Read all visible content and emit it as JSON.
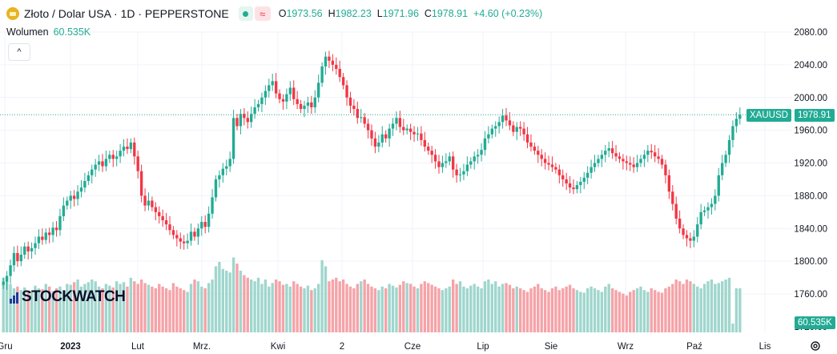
{
  "header": {
    "symbol_title": "Złoto / Dolar USA · 1D · PEPPERSTONE",
    "wave_glyph": "≈",
    "ohlc": {
      "o_label": "O",
      "o_value": "1973.56",
      "h_label": "H",
      "h_value": "1982.23",
      "l_label": "L",
      "l_value": "1971.96",
      "c_label": "C",
      "c_value": "1978.91",
      "change": "+4.60 (+0.23%)"
    }
  },
  "volume_legend": {
    "label": "Wolumen",
    "value": "60.535K"
  },
  "collapse_glyph": "^",
  "price_tag": {
    "symbol": "XAUUSD",
    "price": "1978.91"
  },
  "volume_tag": "60.535K",
  "watermark": "STOCKWATCH",
  "colors": {
    "up": "#22ab94",
    "down": "#f23645",
    "up_vol": "#9fd6cd",
    "down_vol": "#f5a3a8",
    "grid": "#f0f3fa"
  },
  "icons": {
    "settings": "gear-icon",
    "coin": "gold-coin-icon"
  },
  "chart_data": {
    "type": "candlestick",
    "price_axis_ticks": [
      "2080.00",
      "2040.00",
      "2000.00",
      "1960.00",
      "1920.00",
      "1880.00",
      "1840.00",
      "1800.00",
      "1760.00"
    ],
    "price_axis_values": [
      2080,
      2040,
      2000,
      1960,
      1920,
      1880,
      1840,
      1800,
      1760
    ],
    "ylim": [
      1720,
      2090
    ],
    "last_price": 1978.91,
    "time_axis_ticks": [
      "Gru",
      "2023",
      "Lut",
      "Mrz.",
      "Kwi",
      "2",
      "Cze",
      "Lip",
      "Sie",
      "Wrz",
      "Paź",
      "Lis"
    ],
    "closes": [
      1775,
      1782,
      1795,
      1810,
      1800,
      1808,
      1818,
      1812,
      1816,
      1822,
      1830,
      1826,
      1835,
      1832,
      1841,
      1838,
      1855,
      1868,
      1874,
      1880,
      1876,
      1885,
      1890,
      1898,
      1905,
      1912,
      1918,
      1922,
      1916,
      1925,
      1930,
      1925,
      1928,
      1935,
      1940,
      1937,
      1945,
      1928,
      1910,
      1880,
      1868,
      1874,
      1866,
      1860,
      1855,
      1850,
      1845,
      1838,
      1832,
      1828,
      1824,
      1822,
      1825,
      1836,
      1830,
      1840,
      1848,
      1842,
      1858,
      1878,
      1900,
      1905,
      1913,
      1916,
      1925,
      1975,
      1965,
      1980,
      1975,
      1970,
      1980,
      1988,
      1992,
      2000,
      2008,
      2015,
      2020,
      2005,
      1998,
      1995,
      2004,
      2012,
      1998,
      1992,
      1986,
      1990,
      1994,
      1988,
      2000,
      2018,
      2038,
      2050,
      2045,
      2040,
      2035,
      2025,
      2015,
      2000,
      1990,
      1986,
      1975,
      1976,
      1968,
      1960,
      1950,
      1940,
      1945,
      1955,
      1950,
      1962,
      1968,
      1975,
      1964,
      1960,
      1962,
      1958,
      1955,
      1956,
      1948,
      1940,
      1935,
      1930,
      1922,
      1915,
      1920,
      1922,
      1928,
      1912,
      1905,
      1906,
      1910,
      1918,
      1922,
      1928,
      1930,
      1936,
      1950,
      1955,
      1962,
      1965,
      1970,
      1978,
      1972,
      1966,
      1958,
      1964,
      1962,
      1955,
      1945,
      1940,
      1935,
      1930,
      1925,
      1920,
      1918,
      1915,
      1912,
      1905,
      1900,
      1895,
      1890,
      1888,
      1893,
      1897,
      1902,
      1908,
      1915,
      1920,
      1925,
      1930,
      1935,
      1938,
      1932,
      1928,
      1925,
      1922,
      1920,
      1918,
      1915,
      1920,
      1925,
      1930,
      1935,
      1933,
      1928,
      1925,
      1918,
      1905,
      1885,
      1870,
      1852,
      1840,
      1832,
      1828,
      1825,
      1830,
      1845,
      1860,
      1862,
      1866,
      1870,
      1880,
      1905,
      1920,
      1930,
      1948,
      1965,
      1974,
      1978.91
    ],
    "volumes": [
      0.62,
      0.58,
      0.55,
      0.5,
      0.52,
      0.48,
      0.51,
      0.46,
      0.47,
      0.53,
      0.5,
      0.49,
      0.55,
      0.52,
      0.47,
      0.5,
      0.52,
      0.48,
      0.55,
      0.54,
      0.57,
      0.6,
      0.52,
      0.55,
      0.57,
      0.6,
      0.58,
      0.52,
      0.5,
      0.55,
      0.53,
      0.51,
      0.58,
      0.55,
      0.57,
      0.52,
      0.62,
      0.58,
      0.55,
      0.6,
      0.56,
      0.54,
      0.52,
      0.5,
      0.55,
      0.52,
      0.5,
      0.48,
      0.56,
      0.52,
      0.5,
      0.48,
      0.46,
      0.55,
      0.6,
      0.58,
      0.52,
      0.5,
      0.56,
      0.6,
      0.75,
      0.8,
      0.72,
      0.7,
      0.68,
      0.85,
      0.78,
      0.7,
      0.65,
      0.62,
      0.6,
      0.58,
      0.62,
      0.55,
      0.6,
      0.52,
      0.56,
      0.6,
      0.58,
      0.54,
      0.55,
      0.52,
      0.58,
      0.55,
      0.52,
      0.5,
      0.53,
      0.48,
      0.5,
      0.55,
      0.82,
      0.75,
      0.58,
      0.6,
      0.62,
      0.58,
      0.6,
      0.55,
      0.52,
      0.5,
      0.55,
      0.58,
      0.6,
      0.55,
      0.52,
      0.5,
      0.48,
      0.52,
      0.5,
      0.55,
      0.53,
      0.51,
      0.54,
      0.58,
      0.56,
      0.55,
      0.52,
      0.5,
      0.55,
      0.58,
      0.56,
      0.54,
      0.52,
      0.5,
      0.48,
      0.5,
      0.52,
      0.6,
      0.55,
      0.58,
      0.52,
      0.5,
      0.53,
      0.55,
      0.52,
      0.5,
      0.58,
      0.6,
      0.55,
      0.58,
      0.52,
      0.55,
      0.56,
      0.54,
      0.5,
      0.52,
      0.5,
      0.48,
      0.46,
      0.5,
      0.52,
      0.55,
      0.5,
      0.48,
      0.46,
      0.5,
      0.52,
      0.48,
      0.5,
      0.52,
      0.54,
      0.5,
      0.48,
      0.46,
      0.45,
      0.5,
      0.52,
      0.5,
      0.48,
      0.46,
      0.52,
      0.55,
      0.5,
      0.48,
      0.46,
      0.44,
      0.42,
      0.46,
      0.48,
      0.5,
      0.52,
      0.48,
      0.46,
      0.5,
      0.48,
      0.46,
      0.45,
      0.5,
      0.52,
      0.55,
      0.6,
      0.58,
      0.55,
      0.6,
      0.58,
      0.55,
      0.52,
      0.5,
      0.55,
      0.58,
      0.6,
      0.55,
      0.56,
      0.58,
      0.6,
      0.62,
      0.1
    ],
    "volume_axis_partial": "1720.00"
  }
}
